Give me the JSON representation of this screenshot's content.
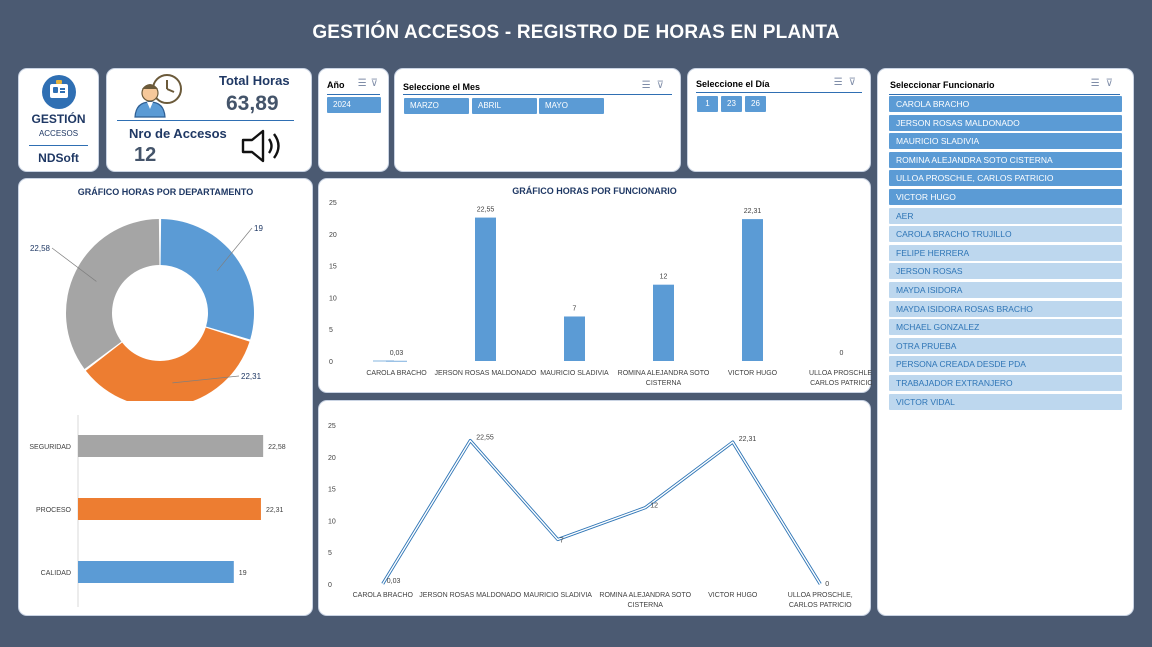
{
  "page_title": "GESTIÓN ACCESOS - REGISTRO DE HORAS EN PLANTA",
  "logo": {
    "line1": "GESTIÓN",
    "line2": "ACCESOS",
    "line3": "NDSoft",
    "icon": "id-badge-icon"
  },
  "kpis": {
    "total_hours_label": "Total Horas",
    "total_hours_value": "63,89",
    "access_count_label": "Nro de Accesos",
    "access_count_value": "12",
    "icons": [
      "clock-person-icon",
      "speaker-icon"
    ]
  },
  "slicers": {
    "year": {
      "title": "Año",
      "items": [
        "2024"
      ]
    },
    "month": {
      "title": "Seleccione el Mes",
      "items": [
        "MARZO",
        "ABRIL",
        "MAYO"
      ]
    },
    "day": {
      "title": "Seleccione el Día",
      "items": [
        "1",
        "23",
        "26"
      ]
    },
    "employee": {
      "title": "Seleccionar Funcionario",
      "items": [
        {
          "label": "CAROLA BRACHO",
          "selected": true
        },
        {
          "label": "JERSON ROSAS MALDONADO",
          "selected": true
        },
        {
          "label": "MAURICIO SLADIVIA",
          "selected": true
        },
        {
          "label": "ROMINA ALEJANDRA SOTO CISTERNA",
          "selected": true
        },
        {
          "label": "ULLOA  PROSCHLE, CARLOS PATRICIO",
          "selected": true
        },
        {
          "label": "VICTOR HUGO",
          "selected": true
        },
        {
          "label": "AER",
          "selected": false
        },
        {
          "label": "CAROLA BRACHO TRUJILLO",
          "selected": false
        },
        {
          "label": "FELIPE HERRERA",
          "selected": false
        },
        {
          "label": "JERSON ROSAS",
          "selected": false
        },
        {
          "label": "MAYDA ISIDORA",
          "selected": false
        },
        {
          "label": "MAYDA ISIDORA ROSAS BRACHO",
          "selected": false
        },
        {
          "label": "MCHAEL GONZALEZ",
          "selected": false
        },
        {
          "label": "OTRA PRUEBA",
          "selected": false
        },
        {
          "label": "PERSONA CREADA DESDE PDA",
          "selected": false
        },
        {
          "label": "TRABAJADOR EXTRANJERO",
          "selected": false
        },
        {
          "label": "VICTOR VIDAL",
          "selected": false
        }
      ]
    },
    "icons": [
      "multi-select-icon",
      "clear-filter-icon"
    ]
  },
  "colors": {
    "background": "#4b5a72",
    "blue": "#5b9bd5",
    "orange": "#ed7d31",
    "gray": "#a5a5a5",
    "title_blue": "#1f3864"
  },
  "chart_data": [
    {
      "type": "pie",
      "variant": "doughnut",
      "title": "GRÁFICO HORAS POR DEPARTAMENTO",
      "categories": [
        "CALIDAD",
        "PROCESO",
        "SEGURIDAD"
      ],
      "values": [
        19,
        22.31,
        22.58
      ],
      "labels": [
        "19",
        "22,31",
        "22,58"
      ],
      "colors": [
        "#5b9bd5",
        "#ed7d31",
        "#a5a5a5"
      ]
    },
    {
      "type": "bar",
      "orientation": "horizontal",
      "categories": [
        "SEGURIDAD",
        "PROCESO",
        "CALIDAD"
      ],
      "values": [
        22.58,
        22.31,
        19
      ],
      "labels": [
        "22,58",
        "22,31",
        "19"
      ],
      "colors": [
        "#a5a5a5",
        "#ed7d31",
        "#5b9bd5"
      ],
      "xlim": [
        0,
        25
      ]
    },
    {
      "type": "bar",
      "title": "GRÁFICO HORAS POR FUNCIONARIO",
      "categories": [
        "CAROLA BRACHO",
        "JERSON ROSAS MALDONADO",
        "MAURICIO SLADIVIA",
        "ROMINA ALEJANDRA SOTO CISTERNA",
        "VICTOR HUGO",
        "ULLOA  PROSCHLE, CARLOS PATRICIO"
      ],
      "values": [
        0.03,
        22.55,
        7,
        12,
        22.31,
        0
      ],
      "labels": [
        "0,03",
        "22,55",
        "7",
        "12",
        "22,31",
        "0"
      ],
      "yticks": [
        0,
        5,
        10,
        15,
        20,
        25
      ],
      "ylim": [
        0,
        25
      ]
    },
    {
      "type": "line",
      "categories": [
        "CAROLA BRACHO",
        "JERSON ROSAS MALDONADO",
        "MAURICIO SLADIVIA",
        "ROMINA ALEJANDRA SOTO CISTERNA",
        "VICTOR HUGO",
        "ULLOA  PROSCHLE, CARLOS PATRICIO"
      ],
      "values": [
        0.03,
        22.55,
        7,
        12,
        22.31,
        0
      ],
      "labels": [
        "0,03",
        "22,55",
        "7",
        "12",
        "22,31",
        "0"
      ],
      "yticks": [
        0,
        5,
        10,
        15,
        20,
        25
      ],
      "ylim": [
        0,
        25
      ]
    }
  ]
}
